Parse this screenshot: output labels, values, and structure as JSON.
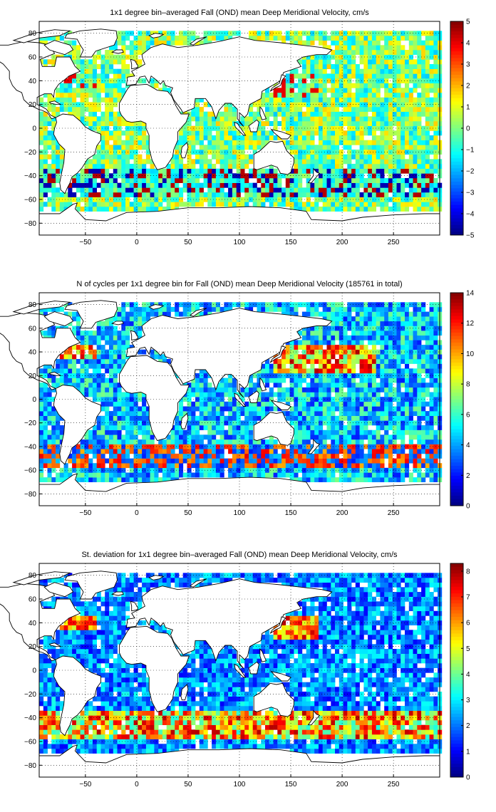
{
  "panels": [
    {
      "title": "1x1 degree bin–averaged Fall (OND) mean Deep Meridional Velocity, cm/s",
      "colorbar": {
        "min": -5,
        "max": 5,
        "ticks": [
          "5",
          "4",
          "3",
          "2",
          "1",
          "0",
          "−1",
          "−2",
          "−3",
          "−4",
          "−5"
        ],
        "tick_values": [
          5,
          4,
          3,
          2,
          1,
          0,
          -1,
          -2,
          -3,
          -4,
          -5
        ]
      },
      "field": "velocity"
    },
    {
      "title": "N of cycles per 1x1 degree bin for Fall (OND) mean Deep Meridional Velocity (185761 in total)",
      "colorbar": {
        "min": 0,
        "max": 14,
        "ticks": [
          "14",
          "12",
          "10",
          "8",
          "6",
          "4",
          "2",
          "0"
        ],
        "tick_values": [
          14,
          12,
          10,
          8,
          6,
          4,
          2,
          0
        ]
      },
      "field": "count"
    },
    {
      "title": "St. deviation for 1x1 degree bin–averaged Fall (OND) mean Deep Meridional Velocity, cm/s",
      "colorbar": {
        "min": 0,
        "max": 8.3,
        "ticks": [
          "8",
          "7",
          "6",
          "5",
          "4",
          "3",
          "2",
          "1",
          "0"
        ],
        "tick_values": [
          8,
          7,
          6,
          5,
          4,
          3,
          2,
          1,
          0
        ]
      },
      "field": "stdev"
    }
  ],
  "map_axes": {
    "xlim": [
      -95,
      295
    ],
    "ylim": [
      -90,
      90
    ],
    "x_ticks": [
      "−50",
      "0",
      "50",
      "100",
      "150",
      "200",
      "250"
    ],
    "x_tick_values": [
      -50,
      0,
      50,
      100,
      150,
      200,
      250
    ],
    "y_ticks": [
      "80",
      "60",
      "40",
      "20",
      "0",
      "−20",
      "−40",
      "−60",
      "−80"
    ],
    "y_tick_values": [
      80,
      60,
      40,
      20,
      0,
      -20,
      -40,
      -60,
      -80
    ],
    "grid": true,
    "colormap": "jet"
  }
}
